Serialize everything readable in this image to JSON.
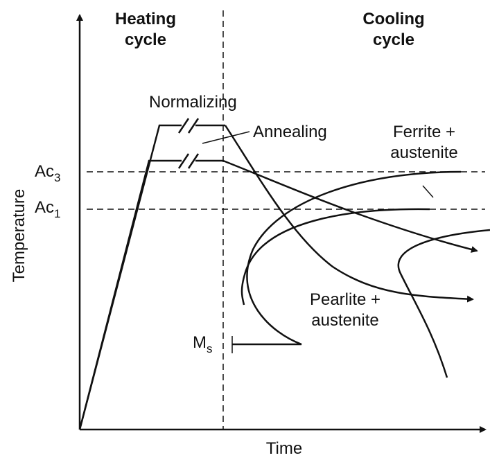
{
  "title_left": [
    "Heating",
    "cycle"
  ],
  "title_right": [
    "Cooling",
    "cycle"
  ],
  "labels": {
    "normalizing": "Normalizing",
    "annealing": "Annealing",
    "ferrite": [
      "Ferrite +",
      "austenite"
    ],
    "pearlite": [
      "Pearlite +",
      "austenite"
    ]
  },
  "levels": {
    "ac3": {
      "base": "Ac",
      "sub": "3"
    },
    "ac1": {
      "base": "Ac",
      "sub": "1"
    },
    "ms": {
      "base": "M",
      "sub": "s"
    }
  },
  "axes": {
    "y": "Temperature",
    "x": "Time"
  }
}
